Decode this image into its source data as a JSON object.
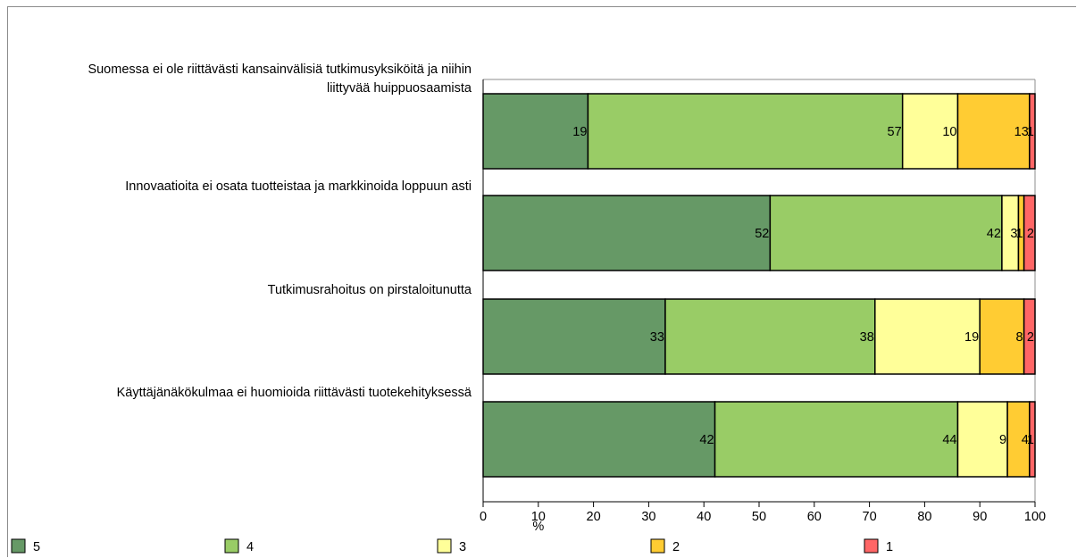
{
  "chart_data": {
    "type": "bar",
    "orientation": "horizontal",
    "stacked": true,
    "categories": [
      [
        "Suomessa ei ole riittävästi kansainvälisiä tutkimusyksiköitä ja niihin",
        "liittyvää huippuosaamista"
      ],
      [
        "Innovaatioita ei osata tuotteistaa ja markkinoida loppuun asti"
      ],
      [
        "Tutkimusrahoitus on pirstaloitunutta"
      ],
      [
        "Käyttäjänäkökulmaa ei huomioida riittävästi tuotekehityksessä"
      ]
    ],
    "series": [
      {
        "name": "5",
        "color": "#669966",
        "values": [
          19,
          52,
          33,
          42
        ]
      },
      {
        "name": "4",
        "color": "#99cc66",
        "values": [
          57,
          42,
          38,
          44
        ]
      },
      {
        "name": "3",
        "color": "#ffff99",
        "values": [
          10,
          3,
          19,
          9
        ]
      },
      {
        "name": "2",
        "color": "#ffcc33",
        "values": [
          13,
          1,
          8,
          4
        ]
      },
      {
        "name": "1",
        "color": "#ff6666",
        "values": [
          1,
          2,
          2,
          1
        ]
      }
    ],
    "xlabel": "%",
    "xlim": [
      0,
      100
    ],
    "xticks": [
      0,
      10,
      20,
      30,
      40,
      50,
      60,
      70,
      80,
      90,
      100
    ],
    "grid": false,
    "legend_position": "bottom"
  }
}
